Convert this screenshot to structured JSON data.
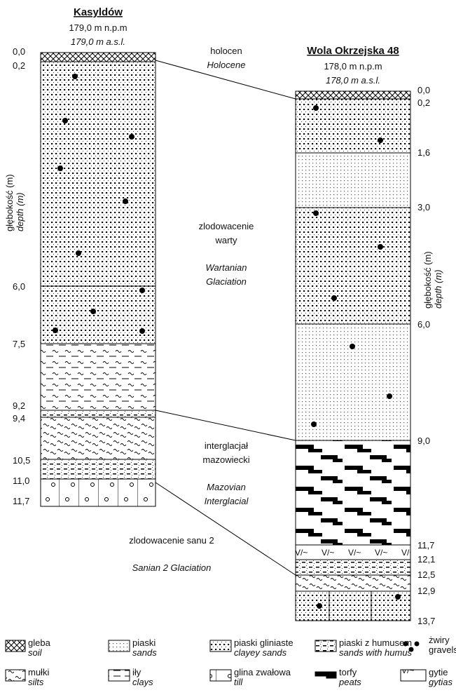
{
  "left_column": {
    "title": "Kasyldów",
    "elevation": "179,0 m n.p.m",
    "elevation_en": "179,0 m a.s.l.",
    "axis_label": "głębokość (m)",
    "axis_label_en": "depth (m)",
    "depths": [
      "0,0",
      "0,2",
      "6,0",
      "7,5",
      "9,2",
      "9,4",
      "10,5",
      "11,0",
      "11,7"
    ]
  },
  "right_column": {
    "title": "Wola Okrzejska 48",
    "elevation": "178,0 m n.p.m",
    "elevation_en": "178,0 m a.s.l.",
    "axis_label": "głębokość (m)",
    "axis_label_en": "depth (m)",
    "depths": [
      "0,0",
      "0,2",
      "1,6",
      "3,0",
      "6,0",
      "9,0",
      "11,7",
      "12,1",
      "12,5",
      "12,9",
      "13,7"
    ]
  },
  "units": [
    {
      "label": "holocen",
      "label_en": "Holocene"
    },
    {
      "label_lines": [
        "zlodowacenie",
        "warty"
      ],
      "label_en_lines": [
        "Wartanian",
        "Glaciation"
      ]
    },
    {
      "label_lines": [
        "interglacjał",
        "mazowiecki"
      ],
      "label_en_lines": [
        "Mazovian",
        "Interglacial"
      ]
    },
    {
      "label": "zlodowacenie sanu 2",
      "label_en": "Sanian 2 Glaciation"
    }
  ],
  "legend": [
    {
      "label": "gleba",
      "label_en": "soil"
    },
    {
      "label": "piaski",
      "label_en": "sands"
    },
    {
      "label": "piaski gliniaste",
      "label_en": "clayey sands"
    },
    {
      "label": "piaski z humusem",
      "label_en": "sands with humus"
    },
    {
      "label": "żwiry",
      "label_en": "gravels"
    },
    {
      "label": "mułki",
      "label_en": "silts"
    },
    {
      "label": "iły",
      "label_en": "clays"
    },
    {
      "label": "glina zwałowa",
      "label_en": "till"
    },
    {
      "label": "torfy",
      "label_en": "peats"
    },
    {
      "label": "gytie",
      "label_en": "gytias"
    }
  ]
}
